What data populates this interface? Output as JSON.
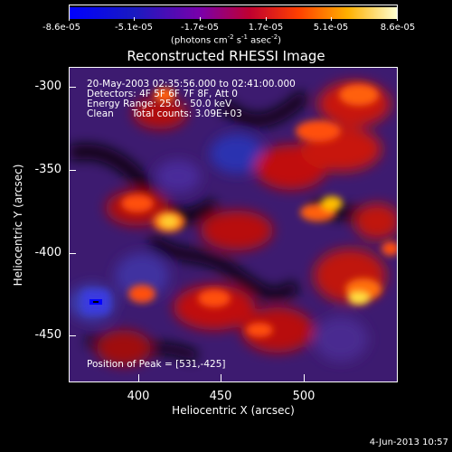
{
  "colorbar": {
    "ticks": [
      "-8.6e-05",
      "-5.1e-05",
      "-1.7e-05",
      "1.7e-05",
      "5.1e-05",
      "8.6e-05"
    ],
    "units_text": "(photons cm",
    "units_sup1": "-2",
    "units_mid": " s",
    "units_sup2": "-1",
    "units_mid2": " asec",
    "units_sup3": "-2",
    "units_end": ")"
  },
  "title": "Reconstructed RHESSI Image",
  "info": {
    "time_range": "20-May-2003 02:35:56.000 to 02:41:00.000",
    "detectors": "Detectors: 4F 5F 6F 7F 8F, Att 0",
    "energy": "Energy Range: 25.0 - 50.0 keV",
    "clean": "Clean      Total counts: 3.09E+03",
    "peak": "Position of Peak = [531,-425]"
  },
  "axes": {
    "ylabel": "Heliocentric Y (arcsec)",
    "xlabel": "Heliocentric X (arcsec)",
    "yticks": [
      "-300",
      "-350",
      "-400",
      "-450"
    ],
    "xticks": [
      "400",
      "450",
      "500"
    ]
  },
  "datestamp": "4-Jun-2013 10:57"
}
